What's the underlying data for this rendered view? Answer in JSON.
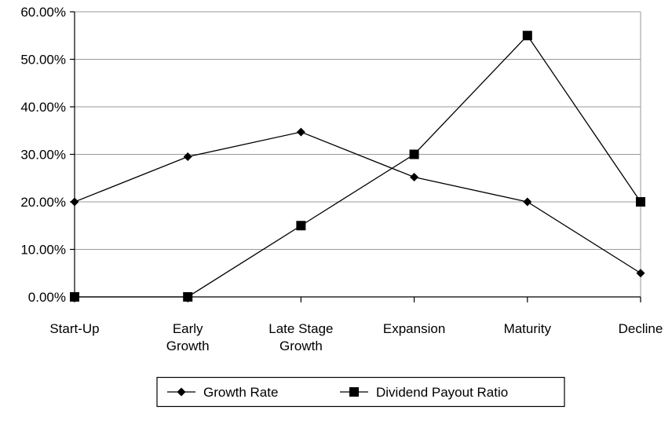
{
  "chart_data": {
    "type": "line",
    "categories": [
      [
        "Start-Up"
      ],
      [
        "Early",
        "Growth"
      ],
      [
        "Late Stage",
        "Growth"
      ],
      [
        "Expansion"
      ],
      [
        "Maturity"
      ],
      [
        "Decline"
      ]
    ],
    "ylim": [
      0,
      60
    ],
    "yticks": [
      "0.00%",
      "10.00%",
      "20.00%",
      "30.00%",
      "40.00%",
      "50.00%",
      "60.00%"
    ],
    "grid": true,
    "legend_position": "bottom",
    "series": [
      {
        "name": "Growth Rate",
        "marker": "diamond",
        "values": [
          20,
          29.5,
          34.7,
          25.2,
          20,
          5
        ]
      },
      {
        "name": "Dividend Payout Ratio",
        "marker": "square",
        "values": [
          0,
          0,
          15,
          30,
          55,
          20
        ]
      }
    ]
  }
}
